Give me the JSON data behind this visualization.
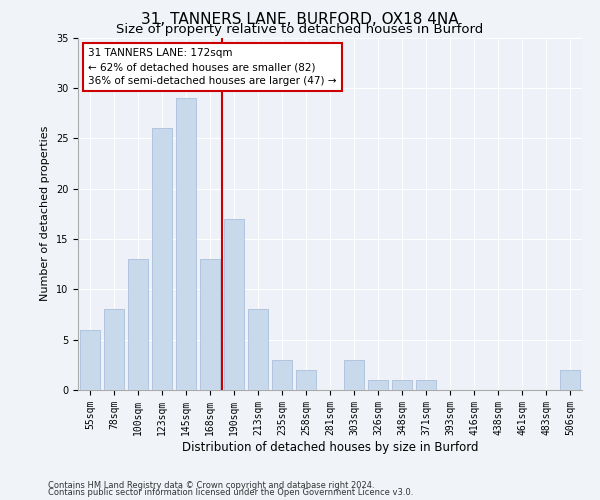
{
  "title": "31, TANNERS LANE, BURFORD, OX18 4NA",
  "subtitle": "Size of property relative to detached houses in Burford",
  "xlabel": "Distribution of detached houses by size in Burford",
  "ylabel": "Number of detached properties",
  "categories": [
    "55sqm",
    "78sqm",
    "100sqm",
    "123sqm",
    "145sqm",
    "168sqm",
    "190sqm",
    "213sqm",
    "235sqm",
    "258sqm",
    "281sqm",
    "303sqm",
    "326sqm",
    "348sqm",
    "371sqm",
    "393sqm",
    "416sqm",
    "438sqm",
    "461sqm",
    "483sqm",
    "506sqm"
  ],
  "values": [
    6,
    8,
    13,
    26,
    29,
    13,
    17,
    8,
    3,
    2,
    0,
    3,
    1,
    1,
    1,
    0,
    0,
    0,
    0,
    0,
    2
  ],
  "bar_color": "#c9d9ec",
  "bar_edge_color": "#a0b8d8",
  "bar_width": 0.8,
  "vline_x": 5.5,
  "vline_color": "#cc0000",
  "annotation_text": "31 TANNERS LANE: 172sqm\n← 62% of detached houses are smaller (82)\n36% of semi-detached houses are larger (47) →",
  "annotation_box_color": "#ffffff",
  "annotation_box_edge": "#cc0000",
  "ylim": [
    0,
    35
  ],
  "yticks": [
    0,
    5,
    10,
    15,
    20,
    25,
    30,
    35
  ],
  "footer1": "Contains HM Land Registry data © Crown copyright and database right 2024.",
  "footer2": "Contains public sector information licensed under the Open Government Licence v3.0.",
  "bg_color": "#eef2f8",
  "grid_color": "#ffffff",
  "title_fontsize": 11,
  "subtitle_fontsize": 9.5,
  "tick_fontsize": 7,
  "ylabel_fontsize": 8,
  "xlabel_fontsize": 8.5,
  "footer_fontsize": 6,
  "annotation_fontsize": 7.5
}
